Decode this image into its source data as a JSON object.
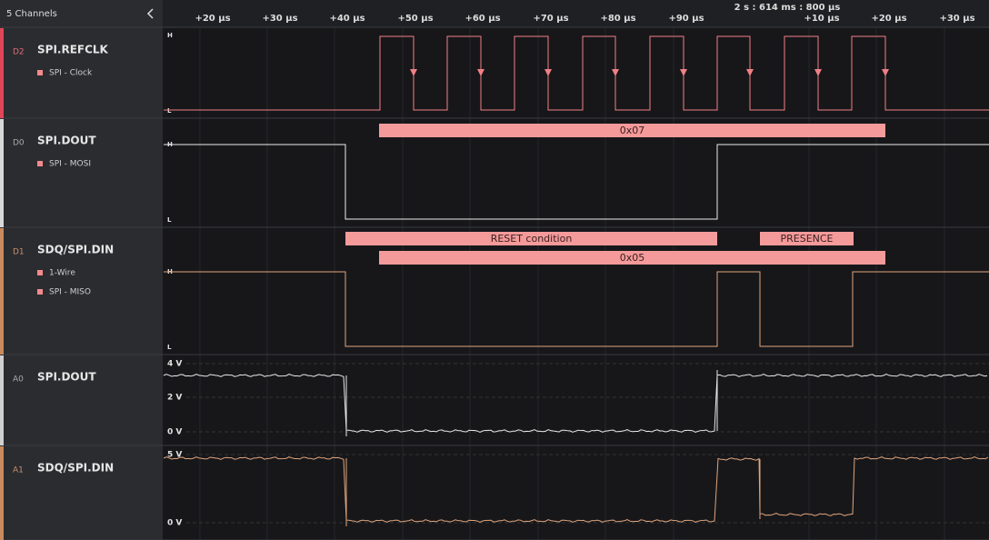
{
  "sidebar": {
    "title": "5 Channels"
  },
  "timeline": {
    "ticks": [
      "+20 µs",
      "+30 µs",
      "+40 µs",
      "+50 µs",
      "+60 µs",
      "+70 µs",
      "+80 µs",
      "+90 µs",
      "+10 µs",
      "+20 µs",
      "+30 µs"
    ],
    "marker": "2 s : 614 ms : 800 µs"
  },
  "channels": [
    {
      "id": "D2",
      "name": "SPI.REFCLK",
      "analyzers": [
        "SPI - Clock"
      ],
      "levels": [
        "H",
        "L"
      ]
    },
    {
      "id": "D0",
      "name": "SPI.DOUT",
      "analyzers": [
        "SPI - MOSI"
      ],
      "levels": [
        "H",
        "L"
      ]
    },
    {
      "id": "D1",
      "name": "SDQ/SPI.DIN",
      "analyzers": [
        "1-Wire",
        "SPI - MISO"
      ],
      "levels": [
        "H",
        "L"
      ]
    },
    {
      "id": "A0",
      "name": "SPI.DOUT",
      "levels": [
        "4 V",
        "2 V",
        "0 V"
      ]
    },
    {
      "id": "A1",
      "name": "SDQ/SPI.DIN",
      "levels": [
        "5 V",
        "0 V"
      ]
    }
  ],
  "annotations": [
    "0x07",
    "RESET condition",
    "PRESENCE",
    "0x05"
  ]
}
